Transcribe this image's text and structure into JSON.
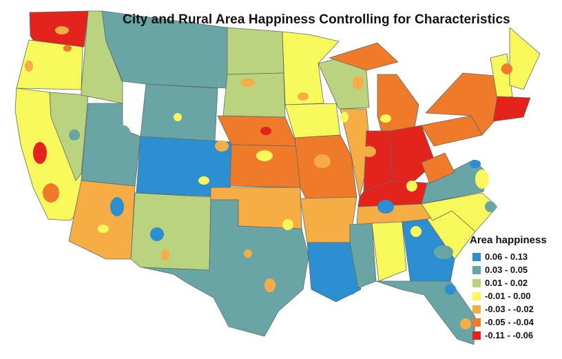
{
  "title": "City and Rural Area Happiness Controlling for Characteristics",
  "legend": {
    "title": "Area happiness",
    "classes": [
      {
        "label": "0.06 - 0.13",
        "color": "#2b8fd1"
      },
      {
        "label": "0.03 - 0.05",
        "color": "#6aa5a5"
      },
      {
        "label": "0.01 - 0.02",
        "color": "#b9d37f"
      },
      {
        "label": "-0.01 - 0.00",
        "color": "#f8f85a"
      },
      {
        "label": "-0.03 - -0.02",
        "color": "#f7ad45"
      },
      {
        "label": "-0.05 - -0.04",
        "color": "#ef7a2a"
      },
      {
        "label": "-0.11 - -0.06",
        "color": "#e4231d"
      }
    ]
  },
  "colors": {
    "border": "#5c6b66",
    "water": "#ffffff"
  }
}
